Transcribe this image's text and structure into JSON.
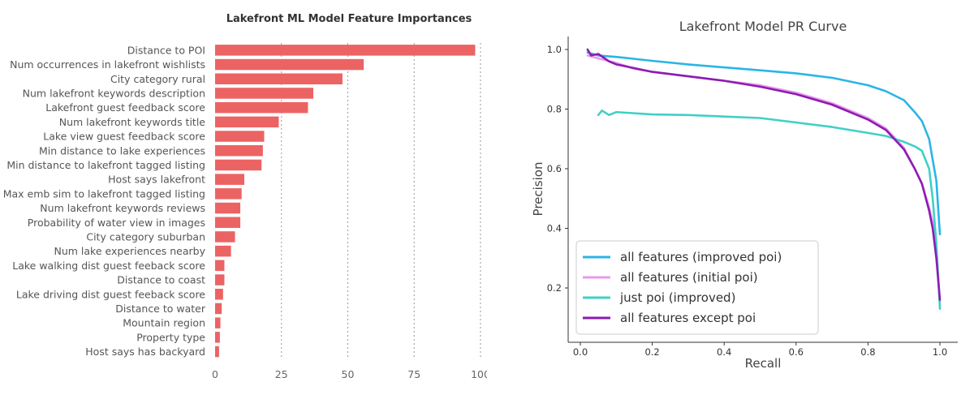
{
  "chart_data": [
    {
      "type": "bar",
      "orientation": "horizontal",
      "title": "Lakefront ML Model Feature Importances",
      "categories": [
        "Distance to POI",
        "Num occurrences in lakefront wishlists",
        "City category rural",
        "Num lakefront keywords description",
        "Lakefront guest feedback score",
        "Num lakefront keywords title",
        "Lake view guest feedback score",
        "Min distance to lake experiences",
        "Min distance to lakefront tagged listing",
        "Host says lakefront",
        "Max emb sim to lakefront tagged listing",
        "Num lakefront keywords reviews",
        "Probability of water view in images",
        "City category suburban",
        "Num lake experiences nearby",
        "Lake walking dist guest feeback score",
        "Distance to coast",
        "Lake driving dist guest feeback score",
        "Distance to water",
        "Mountain region",
        "Property type",
        "Host says has backyard"
      ],
      "values": [
        98,
        56,
        48,
        37,
        35,
        24,
        18.5,
        18,
        17.5,
        11,
        10,
        9.5,
        9.5,
        7.5,
        6,
        3.5,
        3.5,
        3,
        2.5,
        2,
        1.8,
        1.5
      ],
      "xlim": [
        0,
        100
      ],
      "xticks": [
        0,
        25,
        50,
        75,
        100
      ],
      "bar_color": "#ec6363",
      "grid": "vertical dotted"
    },
    {
      "type": "line",
      "title": "Lakefront Model PR Curve",
      "xlabel": "Recall",
      "ylabel": "Precision",
      "xlim": [
        0,
        1
      ],
      "ylim": [
        0.1,
        1.05
      ],
      "xticks": [
        "0.0",
        "0.2",
        "0.4",
        "0.6",
        "0.8",
        "1.0"
      ],
      "yticks": [
        "0.2",
        "0.4",
        "0.6",
        "0.8",
        "1.0"
      ],
      "legend_position": "lower-left",
      "series": [
        {
          "name": "all features (improved poi)",
          "color": "#2bb5e6",
          "points": [
            [
              0.02,
              0.99
            ],
            [
              0.05,
              0.98
            ],
            [
              0.1,
              0.975
            ],
            [
              0.2,
              0.962
            ],
            [
              0.3,
              0.95
            ],
            [
              0.4,
              0.94
            ],
            [
              0.5,
              0.93
            ],
            [
              0.6,
              0.92
            ],
            [
              0.7,
              0.905
            ],
            [
              0.8,
              0.88
            ],
            [
              0.85,
              0.86
            ],
            [
              0.9,
              0.83
            ],
            [
              0.93,
              0.79
            ],
            [
              0.95,
              0.76
            ],
            [
              0.97,
              0.7
            ],
            [
              0.98,
              0.63
            ],
            [
              0.99,
              0.56
            ],
            [
              1.0,
              0.38
            ]
          ]
        },
        {
          "name": "all features (initial poi)",
          "color": "#e89bea",
          "points": [
            [
              0.02,
              0.98
            ],
            [
              0.05,
              0.97
            ],
            [
              0.1,
              0.955
            ],
            [
              0.15,
              0.935
            ],
            [
              0.2,
              0.925
            ],
            [
              0.3,
              0.91
            ],
            [
              0.4,
              0.895
            ],
            [
              0.5,
              0.88
            ],
            [
              0.6,
              0.855
            ],
            [
              0.7,
              0.82
            ],
            [
              0.8,
              0.77
            ],
            [
              0.85,
              0.735
            ],
            [
              0.9,
              0.67
            ],
            [
              0.93,
              0.6
            ],
            [
              0.95,
              0.55
            ],
            [
              0.97,
              0.47
            ],
            [
              0.98,
              0.42
            ],
            [
              0.99,
              0.33
            ],
            [
              1.0,
              0.15
            ]
          ]
        },
        {
          "name": "just poi (improved)",
          "color": "#40d0c6",
          "points": [
            [
              0.05,
              0.78
            ],
            [
              0.06,
              0.795
            ],
            [
              0.08,
              0.78
            ],
            [
              0.1,
              0.79
            ],
            [
              0.2,
              0.782
            ],
            [
              0.3,
              0.78
            ],
            [
              0.4,
              0.775
            ],
            [
              0.5,
              0.77
            ],
            [
              0.6,
              0.755
            ],
            [
              0.7,
              0.74
            ],
            [
              0.8,
              0.72
            ],
            [
              0.85,
              0.71
            ],
            [
              0.9,
              0.69
            ],
            [
              0.93,
              0.675
            ],
            [
              0.95,
              0.66
            ],
            [
              0.97,
              0.6
            ],
            [
              0.98,
              0.5
            ],
            [
              0.99,
              0.35
            ],
            [
              1.0,
              0.13
            ]
          ]
        },
        {
          "name": "all features except poi",
          "color": "#8e1bb3",
          "points": [
            [
              0.02,
              1.0
            ],
            [
              0.03,
              0.98
            ],
            [
              0.05,
              0.985
            ],
            [
              0.08,
              0.96
            ],
            [
              0.1,
              0.95
            ],
            [
              0.2,
              0.925
            ],
            [
              0.3,
              0.91
            ],
            [
              0.4,
              0.895
            ],
            [
              0.5,
              0.875
            ],
            [
              0.6,
              0.85
            ],
            [
              0.7,
              0.815
            ],
            [
              0.8,
              0.765
            ],
            [
              0.85,
              0.73
            ],
            [
              0.9,
              0.665
            ],
            [
              0.93,
              0.6
            ],
            [
              0.95,
              0.55
            ],
            [
              0.97,
              0.46
            ],
            [
              0.98,
              0.4
            ],
            [
              0.99,
              0.3
            ],
            [
              1.0,
              0.16
            ]
          ]
        }
      ]
    }
  ]
}
